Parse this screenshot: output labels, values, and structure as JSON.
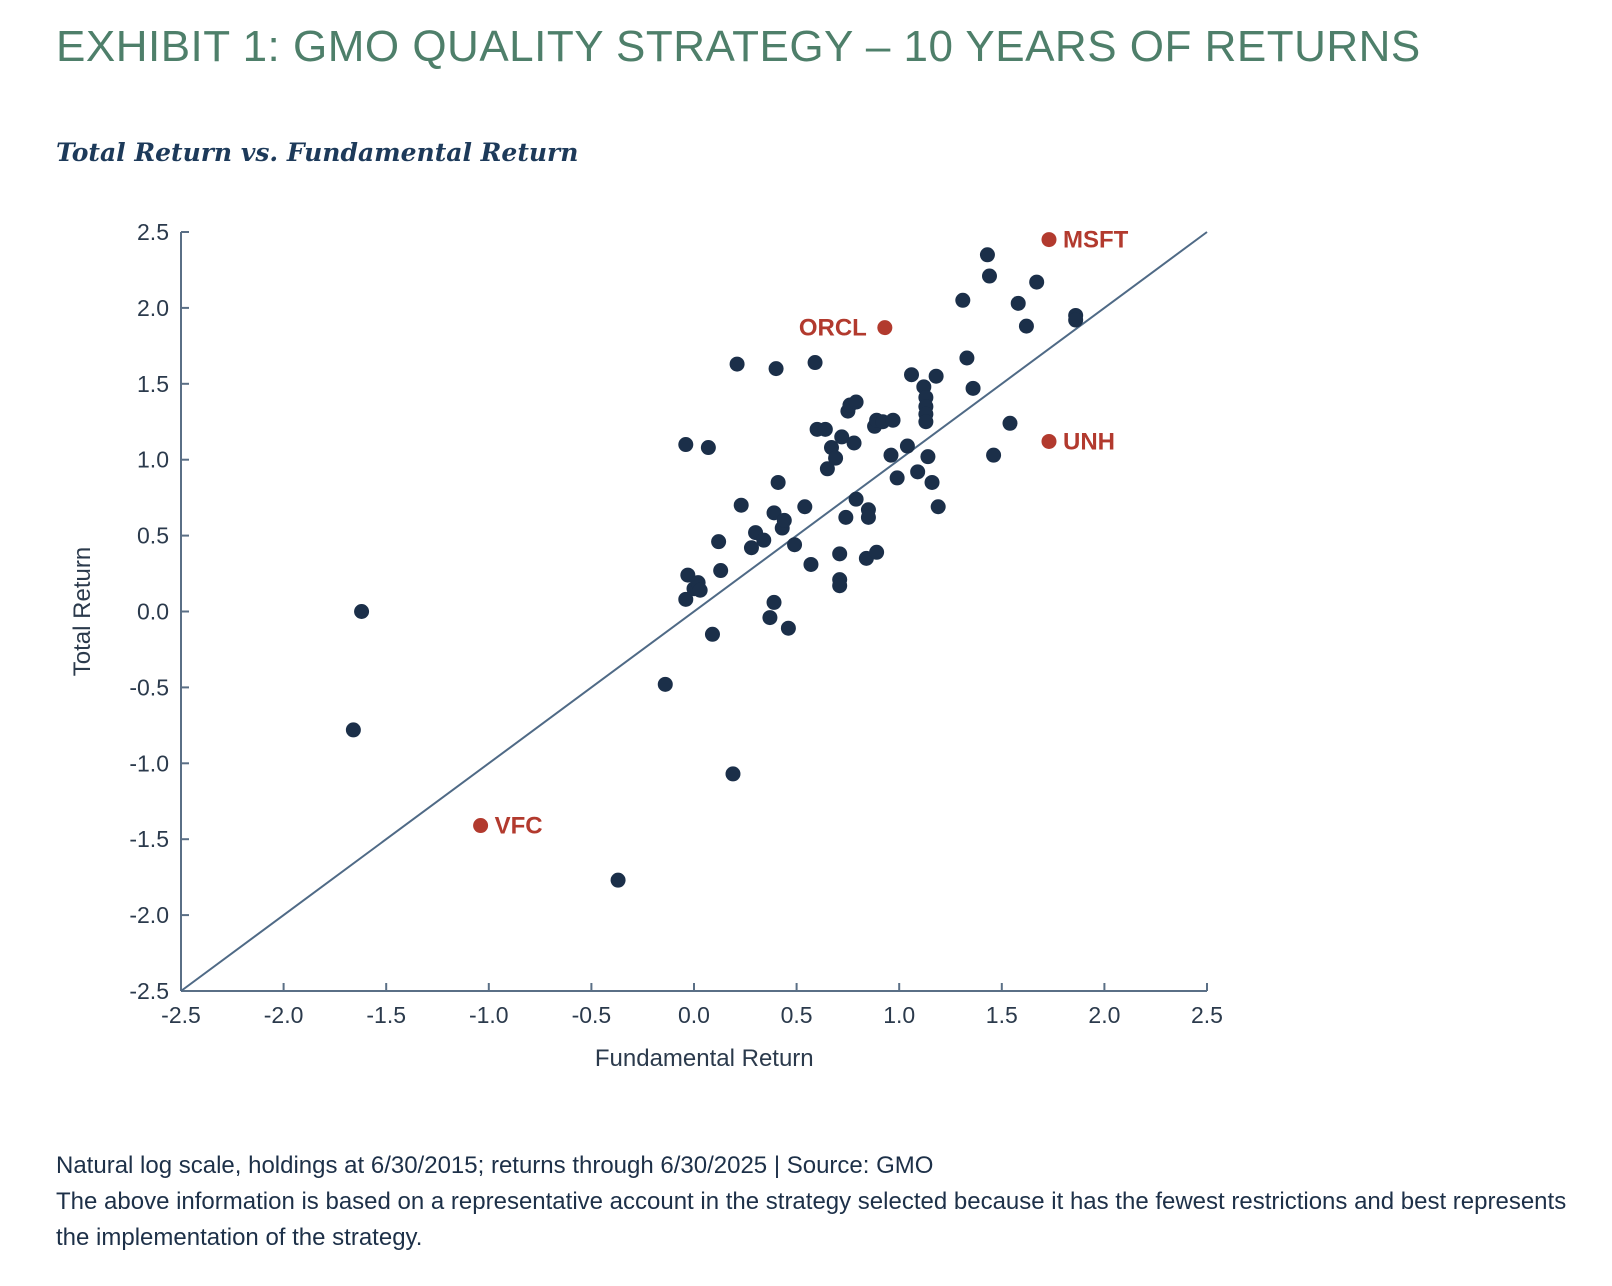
{
  "header": {
    "title": "EXHIBIT 1: GMO QUALITY STRATEGY – 10 YEARS OF RETURNS",
    "subtitle": "Total Return vs. Fundamental Return"
  },
  "footnote": {
    "line1": "Natural log scale, holdings at 6/30/2015; returns through 6/30/2025 | Source: GMO",
    "line2": "The above information is based on a representative account in the strategy selected because it has the fewest restrictions and best represents the implementation of the strategy."
  },
  "colors": {
    "title": "#4e7f6a",
    "subtitle": "#1d3a5a",
    "point": "#1b2f49",
    "highlight": "#b23a2e",
    "axis": "#5a6f86",
    "reference_line": "#4f6a86"
  },
  "chart_data": {
    "type": "scatter",
    "title": "Total Return vs. Fundamental Return",
    "xlabel": "Fundamental Return",
    "ylabel": "Total Return",
    "scale_note": "Natural log scale",
    "xlim": [
      -2.5,
      2.5
    ],
    "ylim": [
      -2.5,
      2.5
    ],
    "xticks": [
      "-2.5",
      "-2.0",
      "-1.5",
      "-1.0",
      "-0.5",
      "0.0",
      "0.5",
      "1.0",
      "1.5",
      "2.0",
      "2.5"
    ],
    "yticks": [
      "2.5",
      "2.0",
      "1.5",
      "1.0",
      "0.5",
      "0.0",
      "-0.5",
      "-1.0",
      "-1.5",
      "-2.0",
      "-2.5"
    ],
    "grid": false,
    "reference_line": {
      "from": [
        -2.5,
        -2.5
      ],
      "to": [
        2.5,
        2.5
      ]
    },
    "highlighted": [
      {
        "label": "MSFT",
        "x": 1.73,
        "y": 2.45,
        "label_side": "right"
      },
      {
        "label": "ORCL",
        "x": 0.93,
        "y": 1.87,
        "label_side": "left"
      },
      {
        "label": "UNH",
        "x": 1.73,
        "y": 1.12,
        "label_side": "right"
      },
      {
        "label": "VFC",
        "x": -1.04,
        "y": -1.41,
        "label_side": "right"
      }
    ],
    "points": [
      [
        -1.62,
        0.0
      ],
      [
        -1.66,
        -0.78
      ],
      [
        -0.37,
        -1.77
      ],
      [
        -0.14,
        -0.48
      ],
      [
        0.19,
        -1.07
      ],
      [
        0.09,
        -0.15
      ],
      [
        -0.04,
        0.08
      ],
      [
        -0.03,
        0.24
      ],
      [
        0.0,
        0.15
      ],
      [
        0.02,
        0.19
      ],
      [
        0.03,
        0.14
      ],
      [
        -0.04,
        1.1
      ],
      [
        0.07,
        1.08
      ],
      [
        0.12,
        0.46
      ],
      [
        0.13,
        0.27
      ],
      [
        0.21,
        1.63
      ],
      [
        0.23,
        0.7
      ],
      [
        0.28,
        0.42
      ],
      [
        0.3,
        0.52
      ],
      [
        0.34,
        0.47
      ],
      [
        0.37,
        -0.04
      ],
      [
        0.39,
        0.06
      ],
      [
        0.39,
        0.65
      ],
      [
        0.4,
        1.6
      ],
      [
        0.41,
        0.85
      ],
      [
        0.43,
        0.55
      ],
      [
        0.44,
        0.6
      ],
      [
        0.46,
        -0.11
      ],
      [
        0.49,
        0.44
      ],
      [
        0.54,
        0.69
      ],
      [
        0.57,
        0.31
      ],
      [
        0.59,
        1.64
      ],
      [
        0.6,
        1.2
      ],
      [
        0.64,
        1.2
      ],
      [
        0.65,
        0.94
      ],
      [
        0.67,
        1.08
      ],
      [
        0.69,
        1.01
      ],
      [
        0.71,
        0.38
      ],
      [
        0.71,
        0.21
      ],
      [
        0.71,
        0.17
      ],
      [
        0.72,
        1.15
      ],
      [
        0.74,
        0.62
      ],
      [
        0.75,
        1.32
      ],
      [
        0.76,
        1.36
      ],
      [
        0.78,
        1.11
      ],
      [
        0.79,
        1.38
      ],
      [
        0.79,
        0.74
      ],
      [
        0.84,
        0.35
      ],
      [
        0.85,
        0.67
      ],
      [
        0.85,
        0.62
      ],
      [
        0.88,
        1.22
      ],
      [
        0.89,
        0.39
      ],
      [
        0.89,
        1.26
      ],
      [
        0.92,
        1.25
      ],
      [
        0.96,
        1.03
      ],
      [
        0.97,
        1.26
      ],
      [
        0.99,
        0.88
      ],
      [
        1.04,
        1.09
      ],
      [
        1.06,
        1.56
      ],
      [
        1.09,
        0.92
      ],
      [
        1.12,
        1.48
      ],
      [
        1.13,
        1.41
      ],
      [
        1.13,
        1.35
      ],
      [
        1.13,
        1.3
      ],
      [
        1.13,
        1.25
      ],
      [
        1.14,
        1.02
      ],
      [
        1.16,
        0.85
      ],
      [
        1.18,
        1.55
      ],
      [
        1.19,
        0.69
      ],
      [
        1.31,
        2.05
      ],
      [
        1.33,
        1.67
      ],
      [
        1.36,
        1.47
      ],
      [
        1.43,
        2.35
      ],
      [
        1.44,
        2.21
      ],
      [
        1.46,
        1.03
      ],
      [
        1.54,
        1.24
      ],
      [
        1.58,
        2.03
      ],
      [
        1.62,
        1.88
      ],
      [
        1.67,
        2.17
      ],
      [
        1.86,
        1.95
      ],
      [
        1.86,
        1.92
      ]
    ]
  }
}
